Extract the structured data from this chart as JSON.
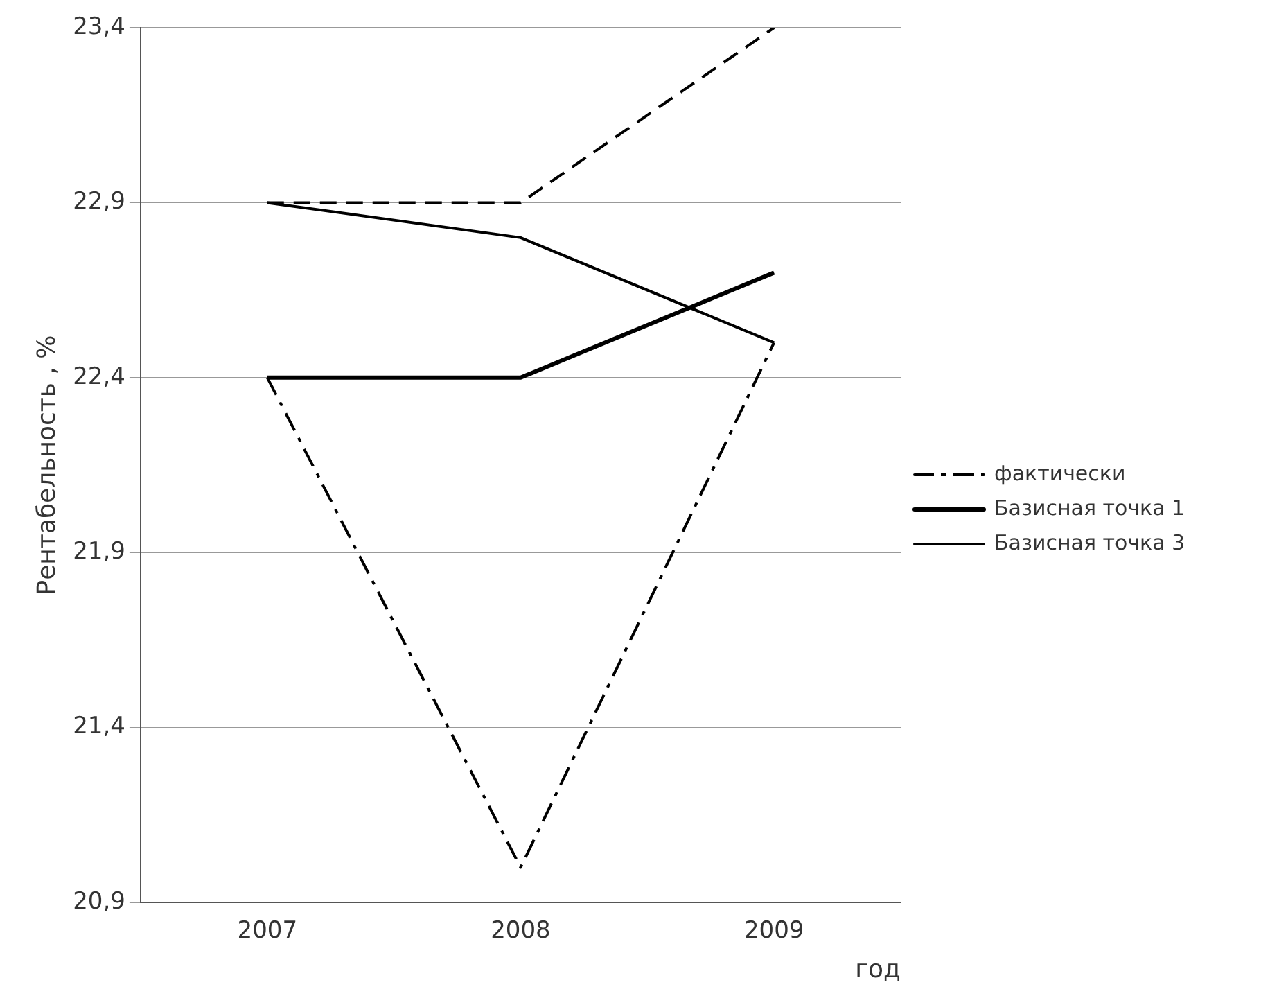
{
  "chart_data": {
    "type": "line",
    "ylabel": "Рентабельность , %",
    "xlabel": "год",
    "categories": [
      "2007",
      "2008",
      "2009"
    ],
    "series": [
      {
        "values": [
          22.9,
          22.9,
          23.4
        ],
        "color": "#000000",
        "line_style": "dashed"
      },
      {
        "name": "фактически",
        "values": [
          22.4,
          21.0,
          22.5
        ],
        "color": "#000000",
        "line_style": "dashdot"
      },
      {
        "name": "Базисная точка 1",
        "values": [
          22.4,
          22.4,
          22.7
        ],
        "color": "#000000",
        "line_style": "solid"
      },
      {
        "name": "Базисная точка 3",
        "values": [
          22.9,
          22.8,
          22.5
        ],
        "color": "#000000",
        "line_style": "solid"
      }
    ],
    "ylim": [
      20.9,
      23.4
    ],
    "yticks": [
      {
        "value": 20.9,
        "label": "20,9"
      },
      {
        "value": 21.4,
        "label": "21,4"
      },
      {
        "value": 21.9,
        "label": "21,9"
      },
      {
        "value": 22.4,
        "label": "22,4"
      },
      {
        "value": 22.9,
        "label": "22,9"
      },
      {
        "value": 23.4,
        "label": "23,4"
      }
    ],
    "grid": "y",
    "legend": "right",
    "marker": "none"
  }
}
